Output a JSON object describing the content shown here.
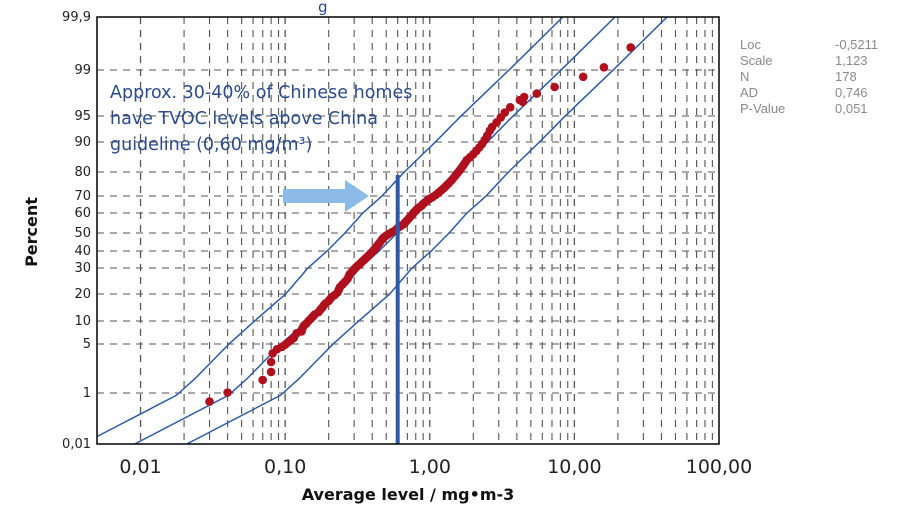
{
  "chart_data": {
    "type": "scatter",
    "scale": "lognormal probability plot",
    "title_fragment": "g",
    "xlabel": "Average level / mg•m-3",
    "ylabel": "Percent",
    "x_scale": "log",
    "y_scale": "normal-probability",
    "xlim": [
      0.005,
      100
    ],
    "ylim": [
      0.01,
      99.9
    ],
    "x_ticks": [
      0.01,
      0.1,
      1,
      10,
      100
    ],
    "x_tick_labels": [
      "0,01",
      "0,10",
      "1,00",
      "10,00",
      "100,00"
    ],
    "y_ticks": [
      0.01,
      1,
      5,
      10,
      20,
      30,
      40,
      50,
      60,
      70,
      80,
      90,
      95,
      99,
      99.9
    ],
    "y_tick_labels": [
      "0,01",
      "1",
      "5",
      "10",
      "20",
      "30",
      "40",
      "50",
      "60",
      "70",
      "80",
      "90",
      "95",
      "99",
      "99,9"
    ],
    "grid": true,
    "guideline_x": 0.6,
    "colors": {
      "points": "#b0101e",
      "fit_lines": "#2d5aa8",
      "guideline": "#2d5aa8",
      "arrow": "#8dbbe8",
      "annotation": "#2a4a8c"
    },
    "fit": {
      "loc": -0.5211,
      "scale": 1.123
    },
    "points": [
      [
        0.03,
        0.52
      ],
      [
        0.04,
        1.02
      ],
      [
        0.07,
        1.6
      ],
      [
        0.08,
        2.1
      ],
      [
        0.08,
        2.9
      ],
      [
        0.082,
        3.8
      ],
      [
        0.088,
        4.3
      ],
      [
        0.095,
        4.6
      ],
      [
        0.1,
        4.9
      ],
      [
        0.105,
        5.3
      ],
      [
        0.11,
        5.7
      ],
      [
        0.115,
        6.1
      ],
      [
        0.12,
        7
      ],
      [
        0.13,
        7.4
      ],
      [
        0.132,
        8.2
      ],
      [
        0.135,
        8.8
      ],
      [
        0.14,
        9.3
      ],
      [
        0.145,
        10
      ],
      [
        0.15,
        10.6
      ],
      [
        0.155,
        11.3
      ],
      [
        0.16,
        12
      ],
      [
        0.17,
        12.8
      ],
      [
        0.175,
        13.6
      ],
      [
        0.18,
        14.3
      ],
      [
        0.185,
        15.2
      ],
      [
        0.19,
        16
      ],
      [
        0.2,
        17
      ],
      [
        0.205,
        17.8
      ],
      [
        0.21,
        18.6
      ],
      [
        0.22,
        19.5
      ],
      [
        0.23,
        20.5
      ],
      [
        0.235,
        21.5
      ],
      [
        0.24,
        22.5
      ],
      [
        0.25,
        23.5
      ],
      [
        0.26,
        24.5
      ],
      [
        0.27,
        25.5
      ],
      [
        0.275,
        26.5
      ],
      [
        0.28,
        27.5
      ],
      [
        0.29,
        28.5
      ],
      [
        0.3,
        29.5
      ],
      [
        0.31,
        30.5
      ],
      [
        0.32,
        31.5
      ],
      [
        0.33,
        32.5
      ],
      [
        0.34,
        33.5
      ],
      [
        0.35,
        34.5
      ],
      [
        0.36,
        35.5
      ],
      [
        0.37,
        36.5
      ],
      [
        0.38,
        37.5
      ],
      [
        0.39,
        38.5
      ],
      [
        0.4,
        39.5
      ],
      [
        0.41,
        40.5
      ],
      [
        0.42,
        41.5
      ],
      [
        0.43,
        42.5
      ],
      [
        0.44,
        43.5
      ],
      [
        0.45,
        44.5
      ],
      [
        0.46,
        45.5
      ],
      [
        0.47,
        46.5
      ],
      [
        0.48,
        47.5
      ],
      [
        0.5,
        48.5
      ],
      [
        0.52,
        49.5
      ],
      [
        0.55,
        50.5
      ],
      [
        0.58,
        51.5
      ],
      [
        0.6,
        52.5
      ],
      [
        0.63,
        53.5
      ],
      [
        0.66,
        54.5
      ],
      [
        0.68,
        55.5
      ],
      [
        0.7,
        56.5
      ],
      [
        0.72,
        57.5
      ],
      [
        0.74,
        58.5
      ],
      [
        0.76,
        59.5
      ],
      [
        0.78,
        60.5
      ],
      [
        0.8,
        61.5
      ],
      [
        0.82,
        62.5
      ],
      [
        0.85,
        63.5
      ],
      [
        0.88,
        64.5
      ],
      [
        0.9,
        65.5
      ],
      [
        0.93,
        66.5
      ],
      [
        0.96,
        67.5
      ],
      [
        1,
        68.5
      ],
      [
        1.05,
        69.5
      ],
      [
        1.1,
        70.5
      ],
      [
        1.15,
        71.5
      ],
      [
        1.2,
        72.5
      ],
      [
        1.25,
        73.5
      ],
      [
        1.3,
        74.5
      ],
      [
        1.35,
        75.5
      ],
      [
        1.4,
        76.5
      ],
      [
        1.45,
        77.5
      ],
      [
        1.5,
        78.5
      ],
      [
        1.55,
        79.5
      ],
      [
        1.6,
        80.5
      ],
      [
        1.65,
        81.5
      ],
      [
        1.7,
        82.5
      ],
      [
        1.75,
        83.5
      ],
      [
        1.8,
        84.5
      ],
      [
        1.9,
        85.5
      ],
      [
        2,
        86.5
      ],
      [
        2.1,
        87.5
      ],
      [
        2.2,
        88.5
      ],
      [
        2.3,
        89.5
      ],
      [
        2.4,
        90.5
      ],
      [
        2.5,
        91.5
      ],
      [
        2.6,
        92.5
      ],
      [
        2.7,
        93.2
      ],
      [
        2.9,
        94
      ],
      [
        3.1,
        94.8
      ],
      [
        3.3,
        95.5
      ],
      [
        3.6,
        96.2
      ],
      [
        4.2,
        97
      ],
      [
        4.5,
        97.3
      ],
      [
        5.5,
        97.6
      ],
      [
        7.3,
        98.1
      ],
      [
        4.4,
        96.8
      ],
      [
        11.5,
        98.7
      ],
      [
        16,
        99.1
      ],
      [
        24.5,
        99.6
      ]
    ]
  },
  "annotation": {
    "lines": [
      "Approx. 30-40% of Chinese homes",
      "have TVOC levels above China",
      "guideline (0,60 mg/m³)"
    ]
  },
  "stats": [
    {
      "label": "Loc",
      "value": "-0,5211"
    },
    {
      "label": "Scale",
      "value": "1,123"
    },
    {
      "label": "N",
      "value": "178"
    },
    {
      "label": "AD",
      "value": "0,746"
    },
    {
      "label": "P-Value",
      "value": "0,051"
    }
  ]
}
